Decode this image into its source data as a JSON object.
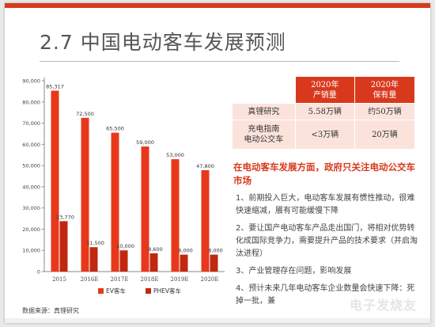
{
  "slide": {
    "title": "2.7 中国电动客车发展预测",
    "source": "数据来源：真锂研究",
    "watermark": "电子发烧友"
  },
  "chart_data": {
    "type": "bar",
    "categories": [
      "2015",
      "2016E",
      "2017E",
      "2018E",
      "2019E",
      "2020E"
    ],
    "series": [
      {
        "name": "EV客车",
        "values": [
          85317,
          72500,
          65500,
          59000,
          53000,
          47800
        ],
        "labels": [
          "85,317",
          "72,500",
          "65,500",
          "59,000",
          "53,000",
          "47,800"
        ]
      },
      {
        "name": "PHEV客车",
        "values": [
          23770,
          11500,
          10000,
          8600,
          8000,
          8000
        ],
        "labels": [
          "23,770",
          "11,500",
          "10,000",
          "8,600",
          "8,000",
          "8,000"
        ]
      }
    ],
    "ylim": [
      0,
      90000
    ],
    "yticks": [
      "0",
      "10,000",
      "20,000",
      "30,000",
      "40,000",
      "50,000",
      "60,000",
      "70,000",
      "80,000",
      "90,000"
    ],
    "colors": {
      "EV客车": "#e8381b",
      "PHEV客车": "#c0280f"
    },
    "legend": "bottom"
  },
  "table": {
    "headers": [
      "",
      "2020年\n产销量",
      "2020年\n保有量"
    ],
    "rows": [
      {
        "label": "真锂研究",
        "sales": "5.58万辆",
        "stock": "约50万辆"
      },
      {
        "label": "充电指南\n电动公交车",
        "sales": "<3万辆",
        "stock": "20万辆"
      }
    ]
  },
  "text": {
    "heading": "在电动客车发展方面，政府只关注电动公交车市场",
    "bullets": [
      "1、前期投入巨大，电动客车发展有惯性推动，很难快速缩减，餍有可能缓慢下降",
      "2、要让国产电动客车产品走出国门，将相对优势转化成国际竞争力，需要提升产品的技术要求（并启淘汰进程）",
      "3、产业管理存在问题，影响发展",
      "4、预计未来几年电动客车企业数量会快速下降：死掉一批，兼"
    ]
  }
}
